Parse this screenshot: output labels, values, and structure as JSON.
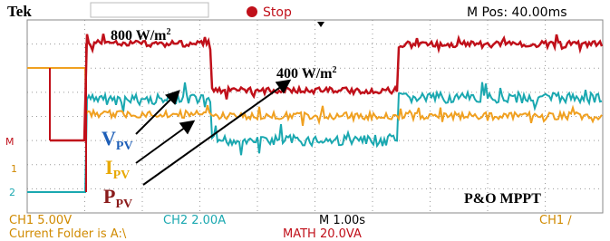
{
  "header": {
    "brand": "Tek",
    "status": "Stop",
    "position": "M Pos: 40.00ms"
  },
  "annotations": {
    "irradiance_high": {
      "text": "800 W/m",
      "sup": "2"
    },
    "irradiance_low": {
      "text": "400 W/m",
      "sup": "2"
    },
    "voltage": {
      "symbol": "V",
      "sub": "PV"
    },
    "current": {
      "symbol": "I",
      "sub": "PV"
    },
    "power": {
      "symbol": "P",
      "sub": "PV"
    },
    "method": "P&O MPPT"
  },
  "markers": {
    "math": "M",
    "ch1": "1",
    "ch2": "2"
  },
  "footer": {
    "ch1": "CH1  5.00V",
    "ch2": "CH2  2.00A",
    "timebase": "M 1.00s",
    "trigger": "CH1 ∕",
    "folder": "Current Folder is A:\\",
    "math": "MATH 20.0VA"
  }
}
